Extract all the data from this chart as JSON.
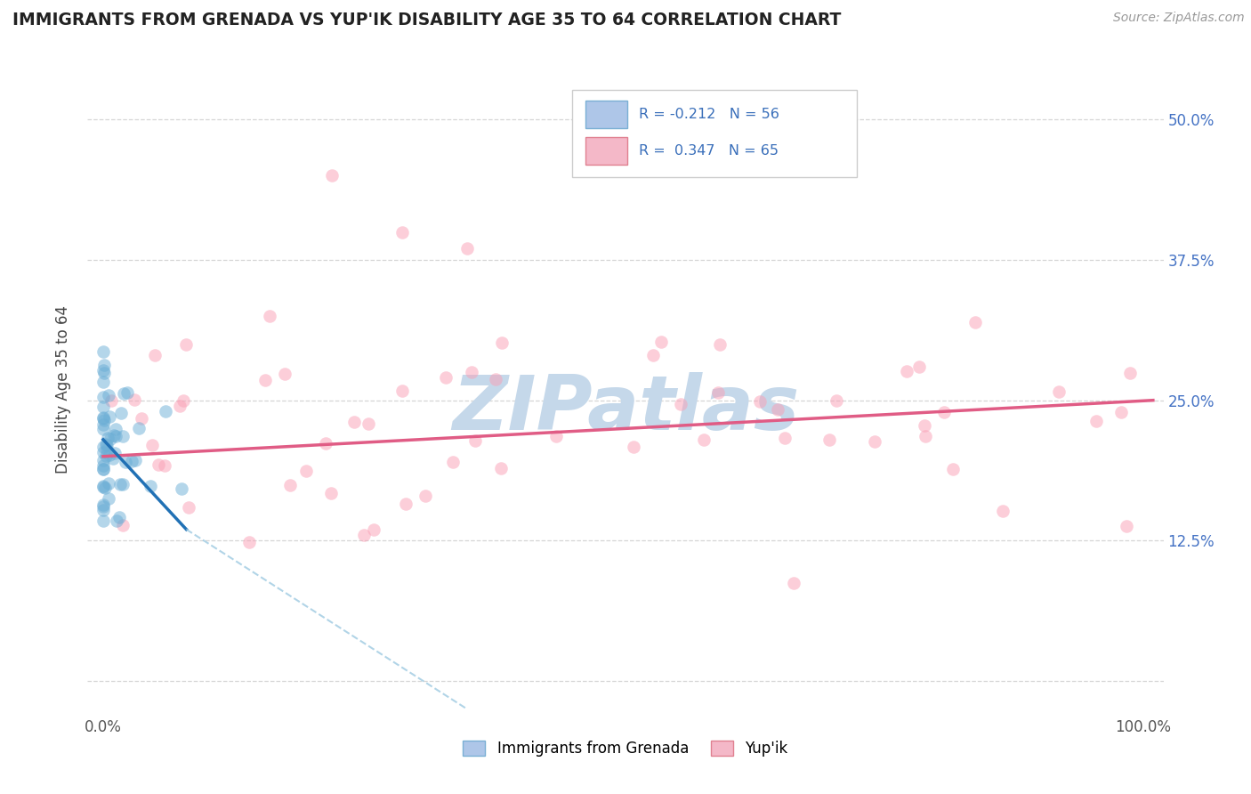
{
  "title": "IMMIGRANTS FROM GRENADA VS YUP'IK DISABILITY AGE 35 TO 64 CORRELATION CHART",
  "source_text": "Source: ZipAtlas.com",
  "ylabel": "Disability Age 35 to 64",
  "xlim": [
    -1.5,
    102
  ],
  "ylim": [
    -3,
    55
  ],
  "x_ticks": [
    0,
    20,
    40,
    60,
    80,
    100
  ],
  "x_tick_labels": [
    "0.0%",
    "",
    "",
    "",
    "",
    "100.0%"
  ],
  "y_ticks": [
    0,
    12.5,
    25.0,
    37.5,
    50.0
  ],
  "y_tick_labels_right": [
    "",
    "12.5%",
    "25.0%",
    "37.5%",
    "50.0%"
  ],
  "legend_label_grenada": "Immigrants from Grenada",
  "legend_label_yupik": "Yup'ik",
  "R_blue": -0.212,
  "N_blue": 56,
  "R_pink": 0.347,
  "N_pink": 65,
  "blue_scatter_color": "#6baed6",
  "pink_scatter_color": "#fa9fb5",
  "blue_scatter_alpha": 0.5,
  "pink_scatter_alpha": 0.5,
  "scatter_size": 110,
  "blue_line_color": "#2171b5",
  "blue_dash_color": "#9ecae1",
  "pink_line_color": "#e05c85",
  "grid_color": "#cccccc",
  "bg_color": "#ffffff",
  "watermark_color": "#c5d8ea",
  "blue_line_x0": 0.0,
  "blue_line_x1": 8.0,
  "blue_line_y0": 21.5,
  "blue_line_y1": 13.5,
  "blue_dash_x0": 8.0,
  "blue_dash_x1": 35.0,
  "blue_dash_y0": 13.5,
  "blue_dash_y1": -2.5,
  "pink_line_x0": 0.0,
  "pink_line_x1": 101.0,
  "pink_line_y0": 20.0,
  "pink_line_y1": 25.0
}
